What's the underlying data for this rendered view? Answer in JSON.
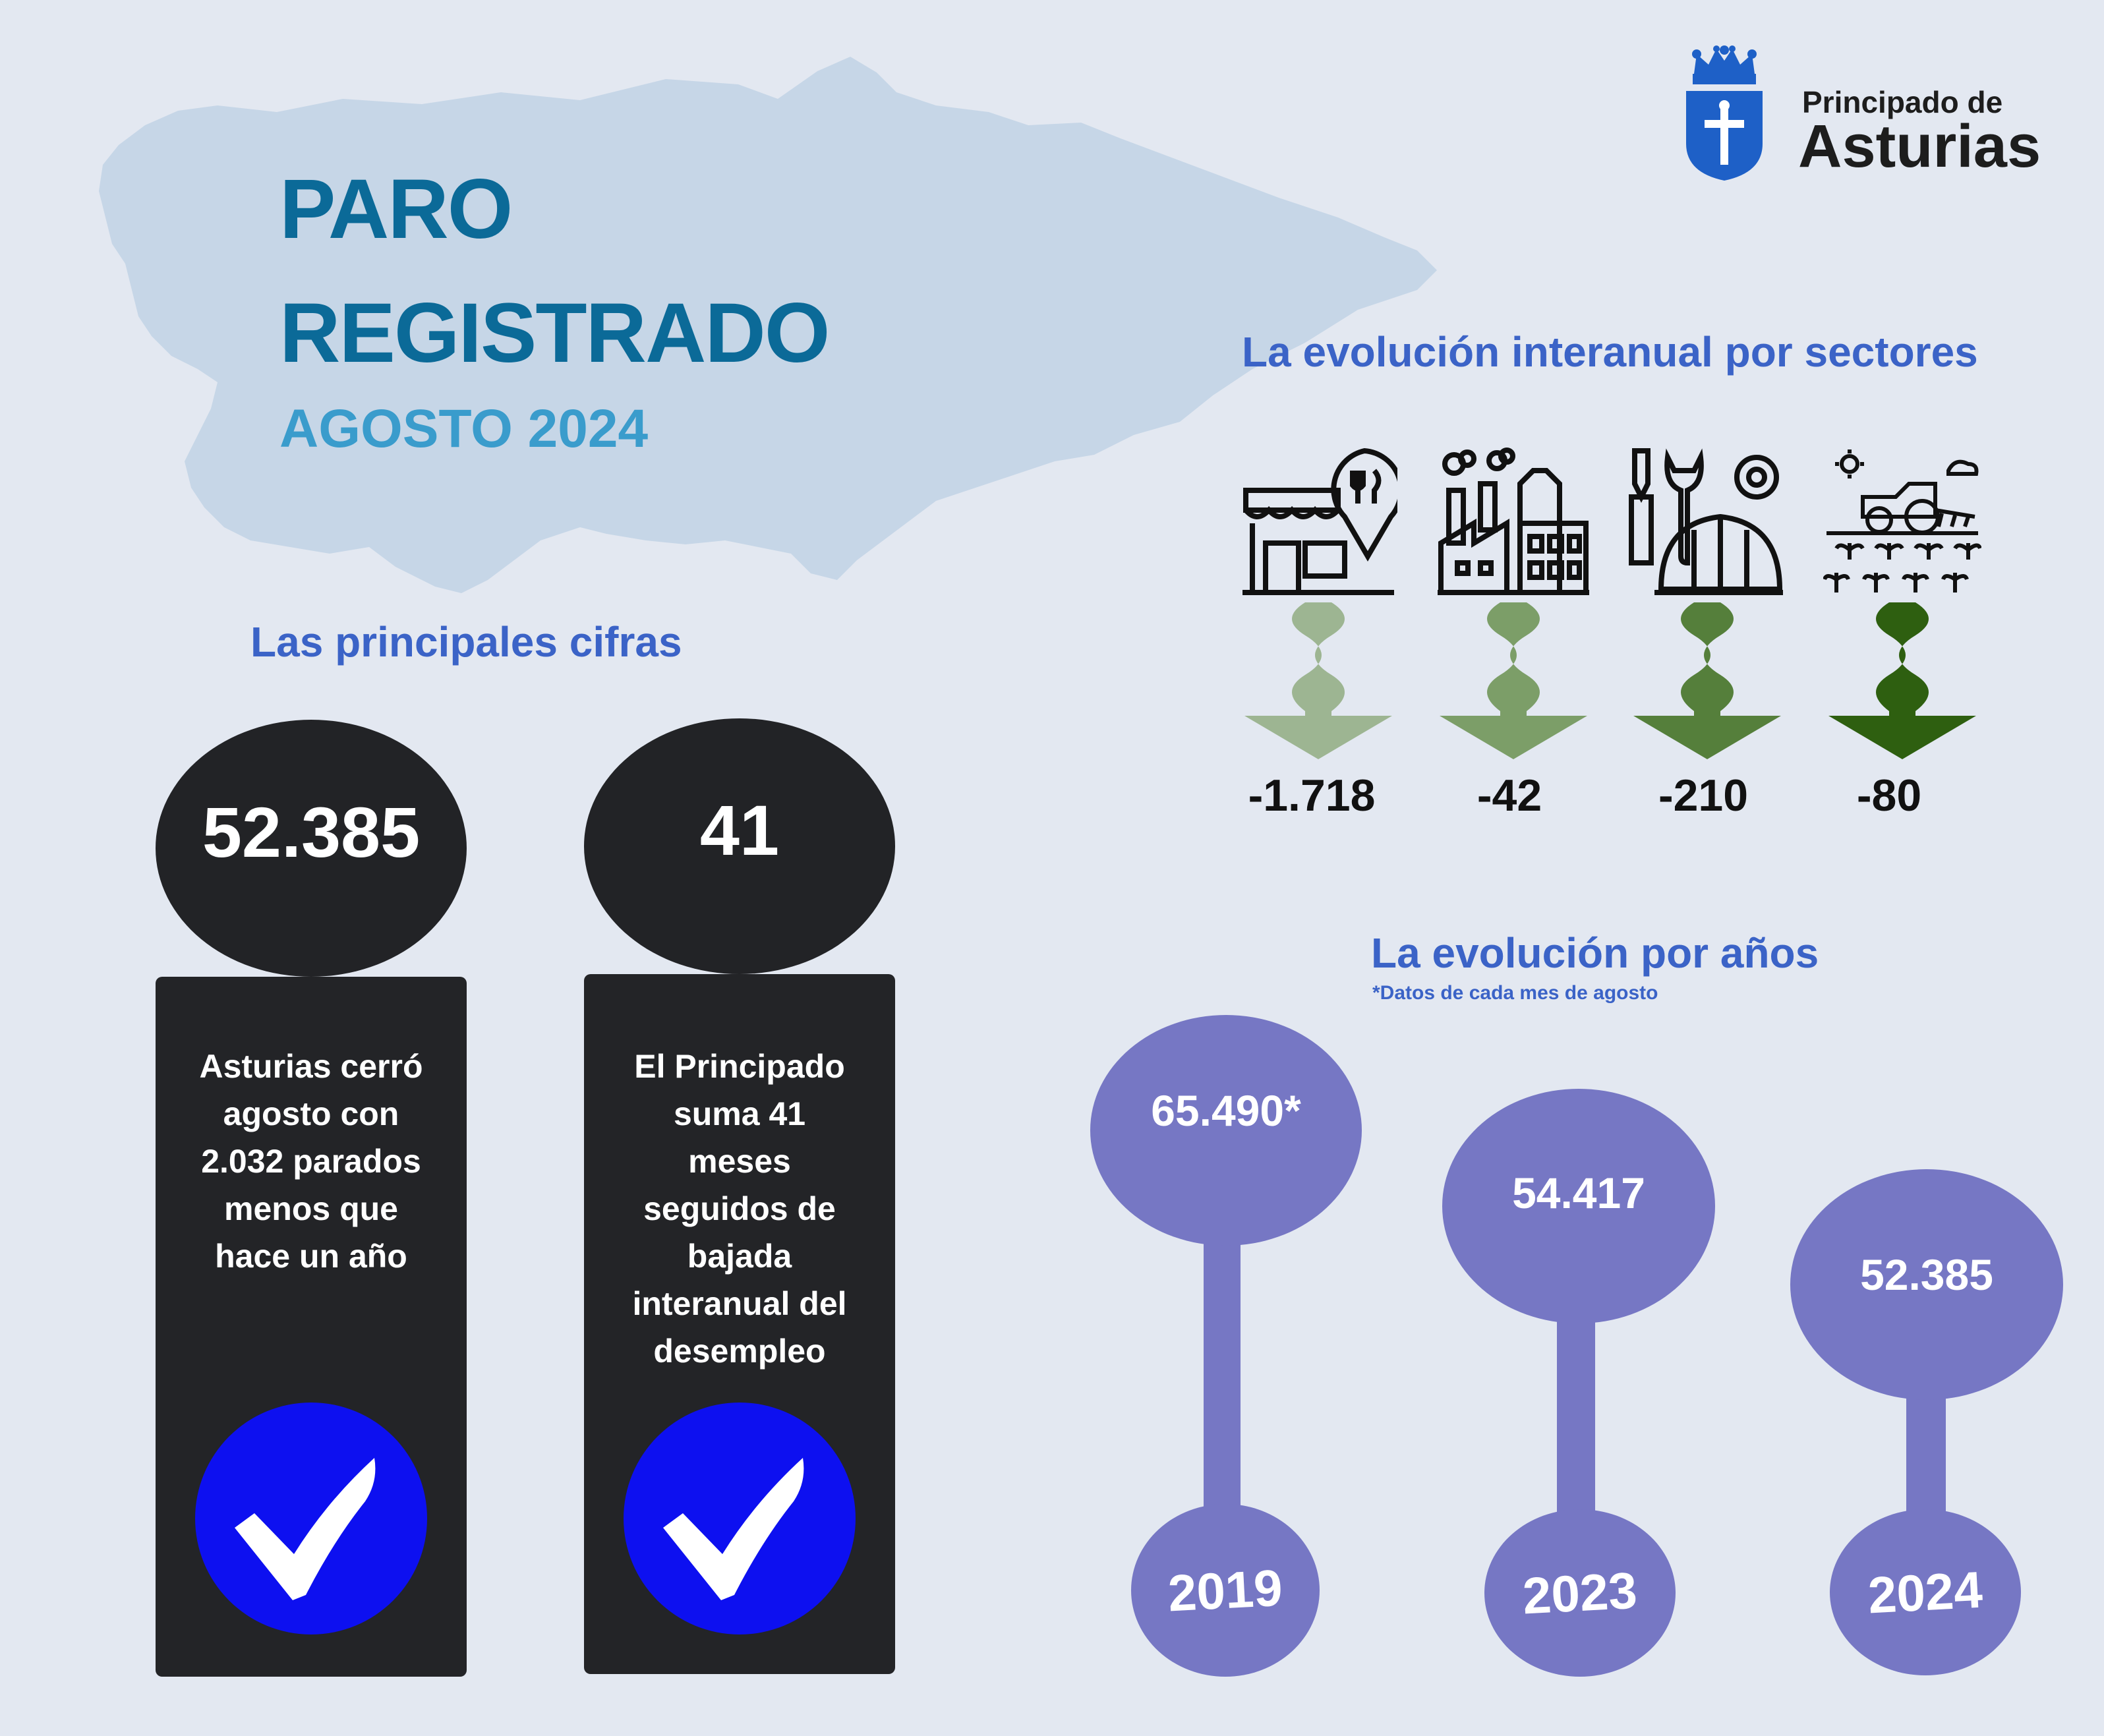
{
  "header": {
    "title_line1": "PARO",
    "title_line2": "REGISTRADO",
    "subtitle": "AGOSTO 2024"
  },
  "logo": {
    "line1": "Principado de",
    "line2": "Asturias",
    "icon": "coat-of-arms-icon"
  },
  "principales": {
    "heading": "Las principales cifras",
    "cards": [
      {
        "value": "52.385",
        "text_lines": [
          "Asturias cerró",
          "agosto con",
          "2.032 parados",
          "menos que",
          "hace un año"
        ],
        "icon": "checkmark-icon"
      },
      {
        "value": "41",
        "text_lines": [
          "El Principado",
          "suma 41",
          "meses",
          "seguidos de",
          "bajada",
          "interanual del",
          "desempleo"
        ],
        "icon": "checkmark-icon"
      }
    ]
  },
  "sectores": {
    "heading": "La evolución interanual por sectores",
    "items": [
      {
        "icon": "services-shop-icon",
        "value": "-1.718",
        "arrow_color": "#9db592"
      },
      {
        "icon": "industry-factory-icon",
        "value": "-42",
        "arrow_color": "#7c9e68"
      },
      {
        "icon": "construction-tools-icon",
        "value": "-210",
        "arrow_color": "#557f3b"
      },
      {
        "icon": "agriculture-tractor-icon",
        "value": "-80",
        "arrow_color": "#2e5f10"
      }
    ]
  },
  "anios": {
    "heading": "La evolución por años",
    "note": "*Datos de cada mes de agosto",
    "items": [
      {
        "value": "65.490*",
        "year": "2019"
      },
      {
        "value": "54.417",
        "year": "2023"
      },
      {
        "value": "52.385",
        "year": "2024"
      }
    ]
  },
  "colors": {
    "background": "#e3e8f1",
    "map": "#c6d6e7",
    "title": "#0b6a98",
    "subtitle": "#3a9ccc",
    "section_heading": "#3b63c7",
    "dark_card": "#232427",
    "check_circle": "#0d10f0",
    "year_purple": "#7677c4"
  }
}
